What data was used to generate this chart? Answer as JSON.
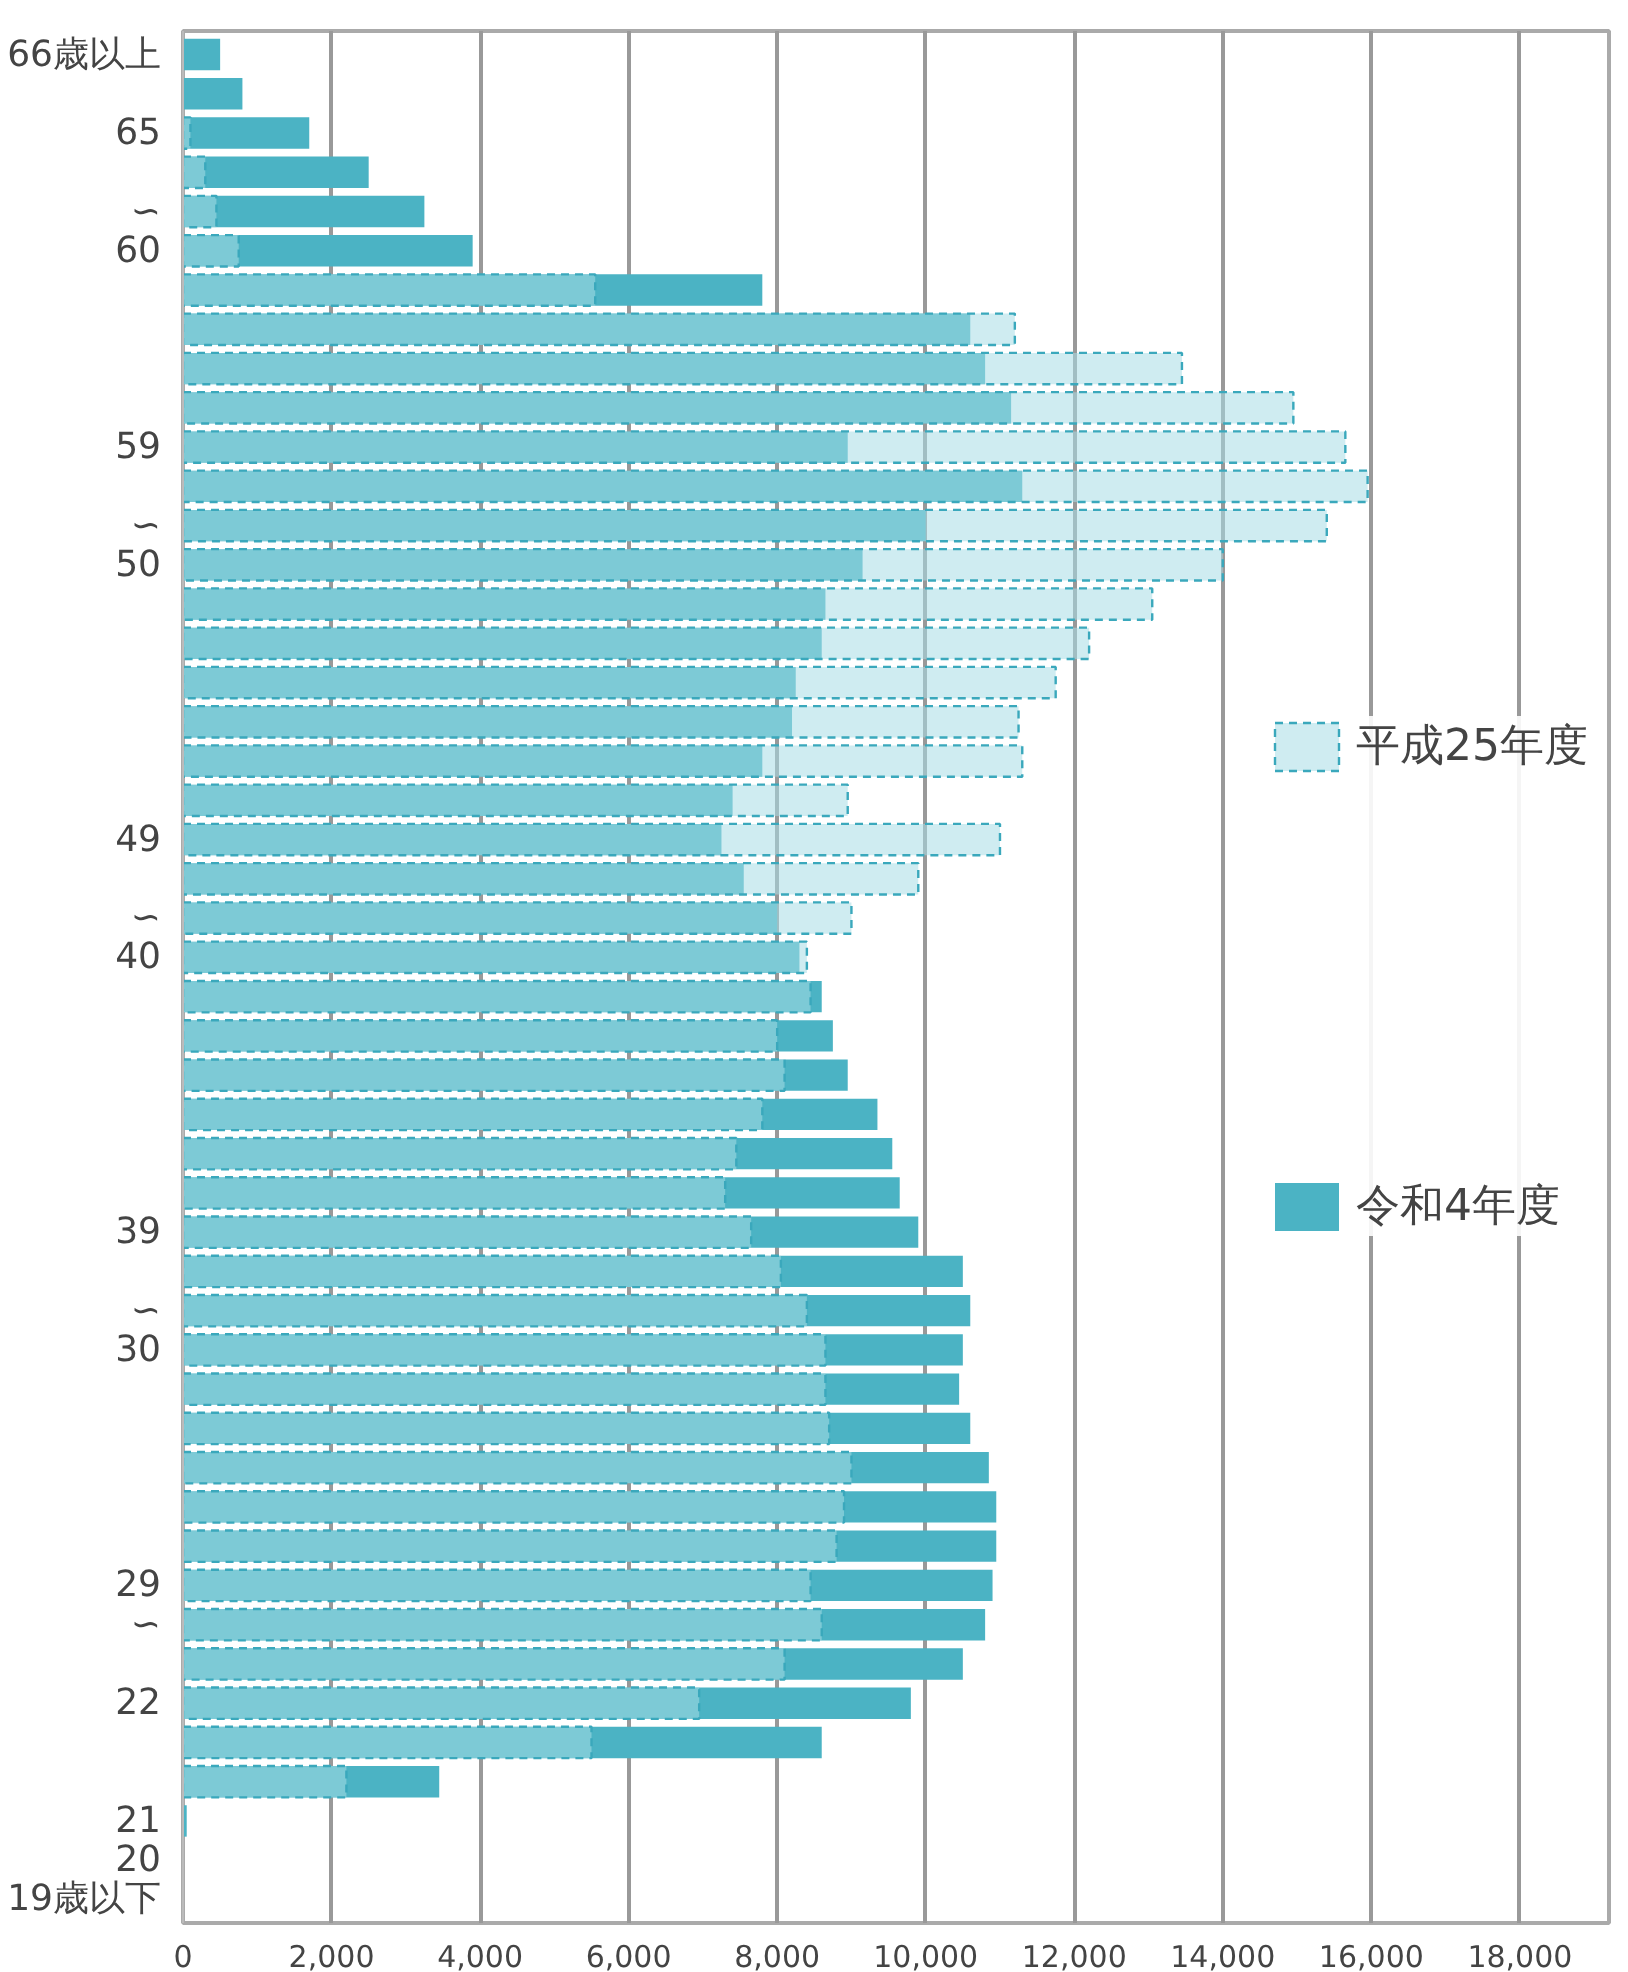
{
  "chart_data": {
    "type": "bar",
    "orientation": "horizontal",
    "categories": [
      "66歳以上",
      null,
      "65",
      null,
      "∽",
      "60",
      null,
      null,
      null,
      null,
      "59",
      null,
      "∽",
      "50",
      null,
      null,
      null,
      null,
      null,
      null,
      "49",
      null,
      "∽",
      "40",
      null,
      null,
      null,
      null,
      null,
      null,
      "39",
      null,
      "∽",
      "30",
      null,
      null,
      null,
      null,
      null,
      "29",
      "∽",
      null,
      "22",
      null,
      null,
      "21",
      "20",
      "19歳以下"
    ],
    "series": [
      {
        "name": "令和4年度",
        "color": "#4bb3c4",
        "values": [
          500,
          800,
          1700,
          2500,
          3250,
          3900,
          7800,
          10600,
          10800,
          11150,
          8950,
          11300,
          10000,
          9150,
          8650,
          8600,
          8250,
          8200,
          7800,
          7400,
          7250,
          7550,
          8000,
          8300,
          8600,
          8750,
          8950,
          9350,
          9550,
          9650,
          9900,
          10500,
          10600,
          10500,
          10450,
          10600,
          10850,
          10950,
          10950,
          10900,
          10800,
          10500,
          9800,
          8600,
          3450,
          50,
          null,
          null
        ]
      },
      {
        "name": "平成25年度",
        "color": "#a8dde6",
        "line_style": "dashed",
        "values": [
          null,
          null,
          100,
          300,
          450,
          750,
          5550,
          11200,
          13450,
          14950,
          15650,
          15950,
          15400,
          14000,
          13050,
          12200,
          11750,
          11250,
          11300,
          8950,
          11000,
          9900,
          9000,
          8400,
          8450,
          8000,
          8100,
          7800,
          7450,
          7300,
          7650,
          8050,
          8400,
          8650,
          8650,
          8700,
          9000,
          8900,
          8800,
          8450,
          8600,
          8100,
          6950,
          5500,
          2200,
          null,
          null,
          null
        ]
      }
    ],
    "xlim": [
      0,
      19200
    ],
    "xticks": [
      0,
      {
        "value": 2000,
        "label": "2,000"
      },
      {
        "value": 4000,
        "label": "4,000"
      },
      {
        "value": 6000,
        "label": "6,000"
      },
      {
        "value": 8000,
        "label": "8,000"
      },
      {
        "value": 10000,
        "label": "10,000"
      },
      {
        "value": 12000,
        "label": "12,000"
      },
      {
        "value": 14000,
        "label": "14,000"
      },
      {
        "value": 16000,
        "label": "16,000"
      },
      {
        "value": 18000,
        "label": "18,000"
      }
    ],
    "grid": "x",
    "legend": "right"
  }
}
